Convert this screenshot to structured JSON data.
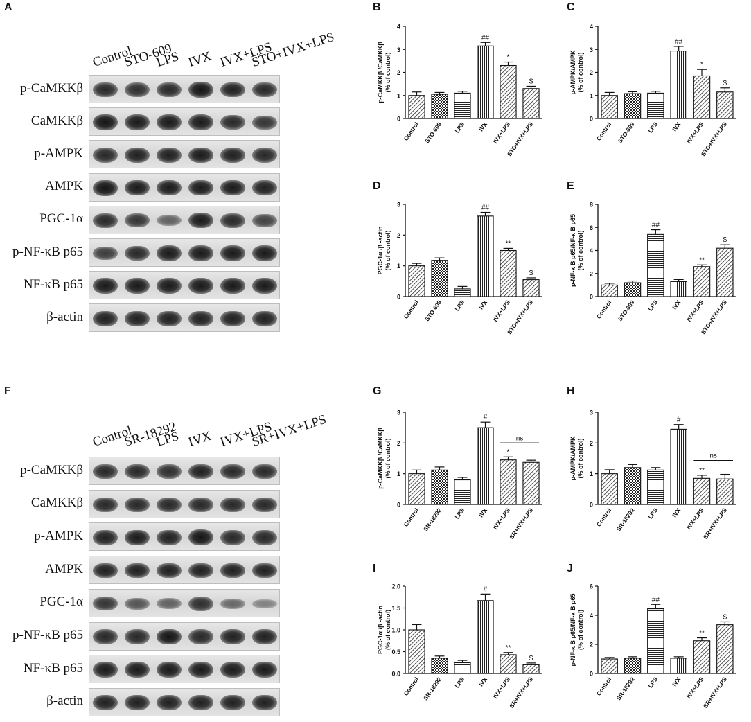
{
  "panel_letters": {
    "A": "A",
    "B": "B",
    "C": "C",
    "D": "D",
    "E": "E",
    "F": "F",
    "G": "G",
    "H": "H",
    "I": "I",
    "J": "J"
  },
  "blot_top": {
    "lanes": [
      "Control",
      "STO-609",
      "LPS",
      "IVX",
      "IVX+LPS",
      "STO+IVX+LPS"
    ],
    "rows": [
      {
        "label": "p-CaMKKβ",
        "intensities": [
          0.85,
          0.8,
          0.85,
          1.0,
          0.9,
          0.85
        ]
      },
      {
        "label": "CaMKKβ",
        "intensities": [
          1.0,
          0.95,
          0.95,
          0.95,
          0.85,
          0.75
        ]
      },
      {
        "label": "p-AMPK",
        "intensities": [
          0.85,
          0.9,
          0.9,
          0.95,
          0.9,
          0.85
        ]
      },
      {
        "label": "AMPK",
        "intensities": [
          1.0,
          0.95,
          0.95,
          0.95,
          0.95,
          0.9
        ]
      },
      {
        "label": "PGC-1α",
        "intensities": [
          0.85,
          0.75,
          0.4,
          0.95,
          0.85,
          0.65
        ]
      },
      {
        "label": "p-NF-κB p65",
        "intensities": [
          0.7,
          0.85,
          0.95,
          0.95,
          0.95,
          0.95
        ]
      },
      {
        "label": "NF-κB p65",
        "intensities": [
          0.95,
          0.95,
          0.95,
          0.95,
          0.95,
          0.95
        ]
      },
      {
        "label": "β-actin",
        "intensities": [
          0.9,
          0.9,
          0.9,
          0.9,
          0.9,
          0.9
        ]
      }
    ]
  },
  "blot_bottom": {
    "lanes": [
      "Control",
      "SR-18292",
      "LPS",
      "IVX",
      "IVX+LPS",
      "SR+IVX+LPS"
    ],
    "rows": [
      {
        "label": "p-CaMKKβ",
        "intensities": [
          0.85,
          0.85,
          0.8,
          0.9,
          0.85,
          0.85
        ]
      },
      {
        "label": "CaMKKβ",
        "intensities": [
          0.85,
          0.85,
          0.85,
          0.85,
          0.85,
          0.85
        ]
      },
      {
        "label": "p-AMPK",
        "intensities": [
          0.9,
          0.95,
          0.9,
          1.0,
          0.85,
          0.85
        ]
      },
      {
        "label": "AMPK",
        "intensities": [
          0.9,
          0.9,
          0.9,
          0.9,
          0.9,
          0.9
        ]
      },
      {
        "label": "PGC-1α",
        "intensities": [
          0.75,
          0.5,
          0.4,
          0.8,
          0.35,
          0.15
        ]
      },
      {
        "label": "p-NF-κB p65",
        "intensities": [
          0.85,
          0.85,
          1.0,
          0.85,
          0.9,
          0.9
        ]
      },
      {
        "label": "NF-κB p65",
        "intensities": [
          0.95,
          0.95,
          0.95,
          0.95,
          0.95,
          0.95
        ]
      },
      {
        "label": "β-actin",
        "intensities": [
          0.9,
          0.9,
          0.9,
          0.9,
          0.9,
          0.9
        ]
      }
    ]
  },
  "chart_data": [
    {
      "panel": "B",
      "type": "bar",
      "categories": [
        "Control",
        "STO-609",
        "LPS",
        "IVX",
        "IVX+LPS",
        "STO+IVX+LPS"
      ],
      "values": [
        1.0,
        1.05,
        1.1,
        3.15,
        2.3,
        1.3
      ],
      "errors": [
        0.15,
        0.08,
        0.08,
        0.15,
        0.15,
        0.1
      ],
      "annotations": [
        "",
        "",
        "",
        "##",
        "*",
        "$"
      ],
      "ylabel": "p-CaMKKβ /CaMKKβ\n(% of control)",
      "ylim": [
        0,
        4
      ],
      "yticks": [
        "0",
        "1",
        "2",
        "3",
        "4"
      ],
      "ytick_values": [
        0,
        1,
        2,
        3,
        4
      ],
      "patterns": [
        "diag",
        "check",
        "hlines",
        "vlines",
        "diag",
        "diag"
      ]
    },
    {
      "panel": "C",
      "type": "bar",
      "categories": [
        "Control",
        "STO-609",
        "LPS",
        "IVX",
        "IVX+LPS",
        "STO+IVX+LPS"
      ],
      "values": [
        1.0,
        1.08,
        1.1,
        2.93,
        1.85,
        1.15
      ],
      "errors": [
        0.13,
        0.08,
        0.08,
        0.2,
        0.28,
        0.18
      ],
      "annotations": [
        "",
        "",
        "",
        "##",
        "*",
        "$"
      ],
      "ylabel": "p-AMPK/AMPK\n(% of control)",
      "ylim": [
        0,
        4
      ],
      "yticks": [
        "0",
        "1",
        "2",
        "3",
        "4"
      ],
      "ytick_values": [
        0,
        1,
        2,
        3,
        4
      ],
      "patterns": [
        "diag",
        "check",
        "hlines",
        "vlines",
        "diag",
        "diag"
      ]
    },
    {
      "panel": "D",
      "type": "bar",
      "categories": [
        "Control",
        "STO-609",
        "LPS",
        "IVX",
        "IVX+LPS",
        "STO+IVX+LPS"
      ],
      "values": [
        1.0,
        1.18,
        0.25,
        2.62,
        1.5,
        0.55
      ],
      "errors": [
        0.08,
        0.08,
        0.08,
        0.12,
        0.07,
        0.06
      ],
      "annotations": [
        "",
        "",
        "",
        "##",
        "**",
        "$"
      ],
      "ylabel": "PGC-1α /β -actin\n(% of control)",
      "ylim": [
        0,
        3
      ],
      "yticks": [
        "0",
        "1",
        "2",
        "3"
      ],
      "ytick_values": [
        0,
        1,
        2,
        3
      ],
      "patterns": [
        "diag",
        "check",
        "hlines",
        "vlines",
        "diag",
        "diag"
      ]
    },
    {
      "panel": "E",
      "type": "bar",
      "categories": [
        "Control",
        "STO-609",
        "LPS",
        "IVX",
        "IVX+LPS",
        "STO+IVX+LPS"
      ],
      "values": [
        1.0,
        1.2,
        5.45,
        1.3,
        2.6,
        4.2
      ],
      "errors": [
        0.15,
        0.15,
        0.35,
        0.18,
        0.15,
        0.3
      ],
      "annotations": [
        "",
        "",
        "##",
        "",
        "**",
        "$"
      ],
      "ylabel": "p-NF-κ B p65/NF-κ B p65\n(% of control)",
      "ylim": [
        0,
        8
      ],
      "yticks": [
        "0",
        "2",
        "4",
        "6",
        "8"
      ],
      "ytick_values": [
        0,
        2,
        4,
        6,
        8
      ],
      "patterns": [
        "diag",
        "check",
        "hlines",
        "vlines",
        "diag",
        "diag"
      ]
    },
    {
      "panel": "G",
      "type": "bar",
      "categories": [
        "Control",
        "SR-18292",
        "LPS",
        "IVX",
        "IVX+LPS",
        "SR+IVX+LPS"
      ],
      "values": [
        1.0,
        1.12,
        0.8,
        2.5,
        1.45,
        1.37
      ],
      "errors": [
        0.12,
        0.1,
        0.08,
        0.18,
        0.1,
        0.07
      ],
      "annotations": [
        "",
        "",
        "",
        "#",
        "*",
        ""
      ],
      "ns_label": "ns",
      "ylabel": "p-CaMKKβ /CaMKKβ\n(% of control)",
      "ylim": [
        0,
        3
      ],
      "yticks": [
        "0",
        "1",
        "2",
        "3"
      ],
      "ytick_values": [
        0,
        1,
        2,
        3
      ],
      "patterns": [
        "diag",
        "check",
        "hlines",
        "vlines",
        "diag",
        "diag"
      ]
    },
    {
      "panel": "H",
      "type": "bar",
      "categories": [
        "Control",
        "SR-18292",
        "LPS",
        "IVX",
        "IVX+LPS",
        "SR+IVX+LPS"
      ],
      "values": [
        1.0,
        1.2,
        1.12,
        2.45,
        0.85,
        0.83
      ],
      "errors": [
        0.13,
        0.1,
        0.08,
        0.15,
        0.1,
        0.15
      ],
      "annotations": [
        "",
        "",
        "",
        "#",
        "**",
        ""
      ],
      "ns_label": "ns",
      "ylabel": "p-AMPK/AMPK\n(% of control)",
      "ylim": [
        0,
        3
      ],
      "yticks": [
        "0",
        "1",
        "2",
        "3"
      ],
      "ytick_values": [
        0,
        1,
        2,
        3
      ],
      "patterns": [
        "diag",
        "check",
        "hlines",
        "vlines",
        "diag",
        "diag"
      ]
    },
    {
      "panel": "I",
      "type": "bar",
      "categories": [
        "Control",
        "SR-18292",
        "LPS",
        "IVX",
        "IVX+LPS",
        "SR+IVX+LPS"
      ],
      "values": [
        1.0,
        0.35,
        0.25,
        1.67,
        0.43,
        0.2
      ],
      "errors": [
        0.12,
        0.05,
        0.05,
        0.15,
        0.05,
        0.04
      ],
      "annotations": [
        "",
        "",
        "",
        "#",
        "**",
        "$"
      ],
      "ylabel": "PGC-1α /β -actin\n(% of control)",
      "ylim": [
        0,
        2.0
      ],
      "yticks": [
        "0.0",
        "0.5",
        "1.0",
        "1.5",
        "2.0"
      ],
      "ytick_values": [
        0,
        0.5,
        1.0,
        1.5,
        2.0
      ],
      "patterns": [
        "diag",
        "check",
        "hlines",
        "vlines",
        "diag",
        "diag"
      ]
    },
    {
      "panel": "J",
      "type": "bar",
      "categories": [
        "Control",
        "SR-18292",
        "LPS",
        "IVX",
        "IVX+LPS",
        "SR+IVX+LPS"
      ],
      "values": [
        1.0,
        1.05,
        4.45,
        1.05,
        2.25,
        3.35
      ],
      "errors": [
        0.1,
        0.1,
        0.3,
        0.1,
        0.2,
        0.2
      ],
      "annotations": [
        "",
        "",
        "##",
        "",
        "**",
        "$"
      ],
      "ylabel": "p-NF-κ B p65/NF-κ B p65\n(% of control)",
      "ylim": [
        0,
        6
      ],
      "yticks": [
        "0",
        "2",
        "4",
        "6"
      ],
      "ytick_values": [
        0,
        2,
        4,
        6
      ],
      "patterns": [
        "diag",
        "check",
        "hlines",
        "vlines",
        "diag",
        "diag"
      ]
    }
  ]
}
